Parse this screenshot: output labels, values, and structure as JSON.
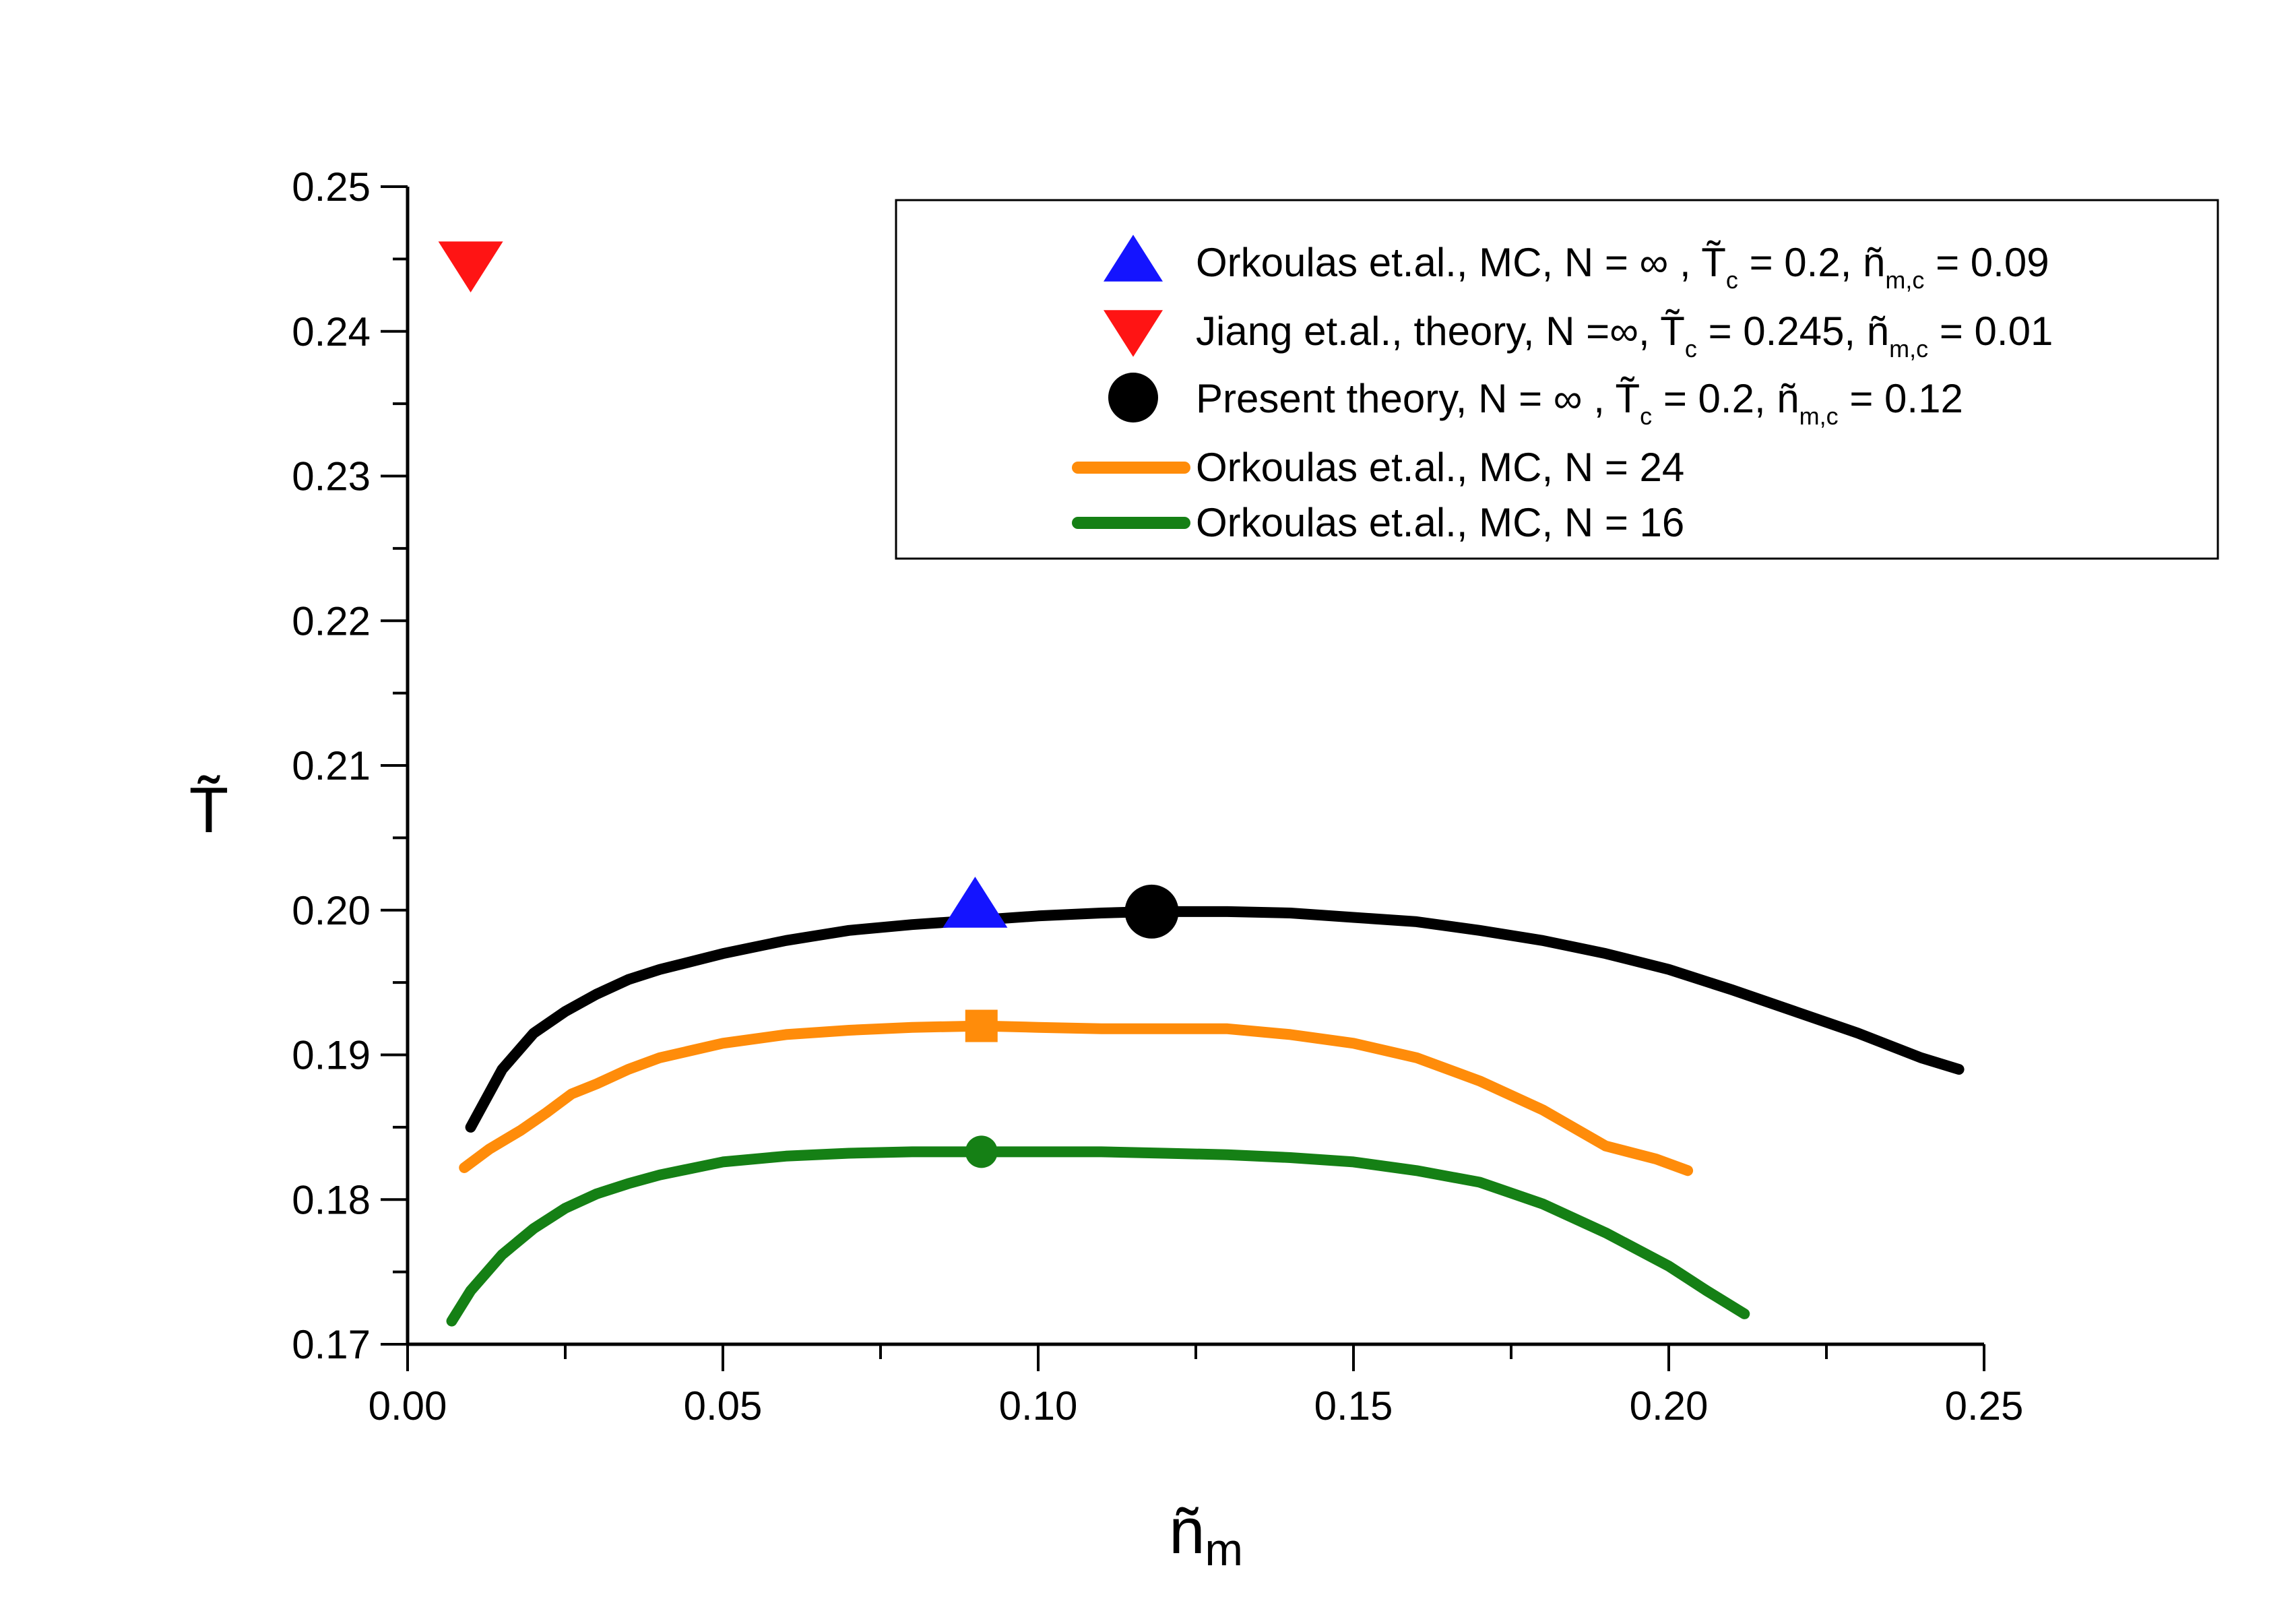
{
  "chart_data": {
    "type": "line",
    "title": "",
    "xlabel": "ñ",
    "xlabel_sub": "m",
    "ylabel": "T̃",
    "xlim": [
      0.0,
      0.25
    ],
    "ylim": [
      0.17,
      0.25
    ],
    "x_ticks": [
      "0.00",
      "0.05",
      "0.10",
      "0.15",
      "0.20",
      "0.25"
    ],
    "y_ticks": [
      "0.17",
      "0.18",
      "0.19",
      "0.20",
      "0.21",
      "0.22",
      "0.23",
      "0.24",
      "0.25"
    ],
    "legend_position": "top-right",
    "series": [
      {
        "name": "Present theory, N = ∞ , T̃c = 0.2, ñm,c = 0.12",
        "kind": "line",
        "color": "#000000",
        "x": [
          0.01,
          0.015,
          0.02,
          0.025,
          0.03,
          0.035,
          0.04,
          0.05,
          0.06,
          0.07,
          0.08,
          0.09,
          0.1,
          0.11,
          0.118,
          0.13,
          0.14,
          0.15,
          0.16,
          0.17,
          0.18,
          0.19,
          0.2,
          0.21,
          0.22,
          0.23,
          0.24,
          0.246
        ],
        "y": [
          0.185,
          0.189,
          0.1915,
          0.193,
          0.1942,
          0.1952,
          0.1959,
          0.197,
          0.1979,
          0.1986,
          0.199,
          0.1993,
          0.1996,
          0.1998,
          0.1999,
          0.1999,
          0.1998,
          0.1995,
          0.1992,
          0.1986,
          0.1979,
          0.197,
          0.1959,
          0.1945,
          0.193,
          0.1915,
          0.1898,
          0.189
        ]
      },
      {
        "name": "Orkoulas et.al., MC, N = 24",
        "kind": "line",
        "color": "#ff8c0a",
        "marker": "square",
        "marker_x": 0.091,
        "marker_y": 0.192,
        "x": [
          0.009,
          0.013,
          0.018,
          0.022,
          0.026,
          0.03,
          0.035,
          0.04,
          0.05,
          0.06,
          0.07,
          0.08,
          0.091,
          0.1,
          0.11,
          0.12,
          0.13,
          0.14,
          0.15,
          0.16,
          0.17,
          0.18,
          0.19,
          0.198,
          0.203
        ],
        "y": [
          0.1822,
          0.1835,
          0.1848,
          0.186,
          0.1873,
          0.188,
          0.189,
          0.1898,
          0.1908,
          0.1914,
          0.1917,
          0.1919,
          0.192,
          0.1919,
          0.1918,
          0.1918,
          0.1918,
          0.1914,
          0.1908,
          0.1898,
          0.1882,
          0.1862,
          0.1837,
          0.1828,
          0.182
        ]
      },
      {
        "name": "Orkoulas et.al., MC, N = 16",
        "kind": "line",
        "color": "#158015",
        "marker": "circle",
        "marker_x": 0.091,
        "marker_y": 0.1833,
        "x": [
          0.007,
          0.01,
          0.015,
          0.02,
          0.025,
          0.03,
          0.035,
          0.04,
          0.05,
          0.06,
          0.07,
          0.08,
          0.091,
          0.1,
          0.11,
          0.12,
          0.13,
          0.14,
          0.15,
          0.16,
          0.17,
          0.18,
          0.19,
          0.2,
          0.206,
          0.212
        ],
        "y": [
          0.1716,
          0.1737,
          0.1762,
          0.178,
          0.1794,
          0.1804,
          0.1811,
          0.1817,
          0.1826,
          0.183,
          0.1832,
          0.1833,
          0.1833,
          0.1833,
          0.1833,
          0.1832,
          0.1831,
          0.1829,
          0.1826,
          0.182,
          0.1812,
          0.1797,
          0.1777,
          0.1754,
          0.1737,
          0.1721
        ]
      },
      {
        "name": "Orkoulas et.al., MC, N = ∞ , T̃c = 0.2, ñm,c = 0.09",
        "kind": "point",
        "marker": "triangle-up",
        "color": "#1414ff",
        "x": [
          0.09
        ],
        "y": [
          0.2003
        ]
      },
      {
        "name": "Jiang et.al., theory, N =∞,T̃c = 0.245, ñm,c = 0.01",
        "kind": "point",
        "marker": "triangle-down",
        "color": "#ff1414",
        "x": [
          0.01
        ],
        "y": [
          0.2447
        ]
      },
      {
        "name": "Present theory, N = ∞ , T̃c = 0.2, ñm,c = 0.12",
        "kind": "point",
        "marker": "circle",
        "color": "#000000",
        "x": [
          0.118
        ],
        "y": [
          0.1999
        ]
      }
    ],
    "legend": [
      {
        "marker": "triangle-up",
        "color": "#1414ff",
        "label": "Orkoulas et.al., MC, N = ∞ ,",
        "t": "T̃",
        "t_sub": "c",
        "t_val": " = 0.2, ",
        "n": "ñ",
        "n_sub": "m,c",
        "n_val": " = 0.09"
      },
      {
        "marker": "triangle-down",
        "color": "#ff1414",
        "label": "Jiang et.al., theory, N =∞,",
        "t": "T̃",
        "t_sub": "c",
        "t_val": " = 0.245, ",
        "n": "ñ",
        "n_sub": "m,c",
        "n_val": " = 0.01"
      },
      {
        "marker": "circle",
        "color": "#000000",
        "label": "Present theory, N = ∞ , ",
        "t": "T̃",
        "t_sub": "c",
        "t_val": " = 0.2, ",
        "n": "ñ",
        "n_sub": "m,c",
        "n_val": " = 0.12"
      },
      {
        "marker": "line",
        "color": "#ff8c0a",
        "label": "Orkoulas et.al., MC, N = 24"
      },
      {
        "marker": "line",
        "color": "#158015",
        "label": "Orkoulas et.al., MC, N = 16"
      }
    ]
  }
}
